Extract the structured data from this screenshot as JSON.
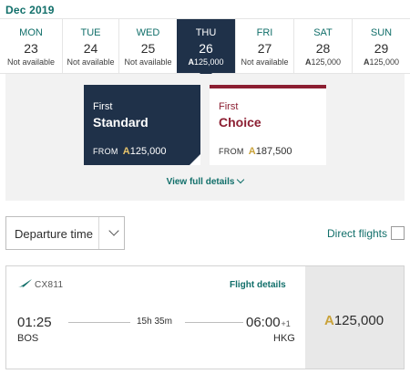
{
  "calendar": {
    "month": "Dec 2019",
    "days": [
      {
        "dow": "MON",
        "date": "23",
        "price": "Not available"
      },
      {
        "dow": "TUE",
        "date": "24",
        "price": "Not available"
      },
      {
        "dow": "WED",
        "date": "25",
        "price": "Not available"
      },
      {
        "dow": "THU",
        "date": "26",
        "price": "125,000",
        "currency": "A",
        "selected": true
      },
      {
        "dow": "FRI",
        "date": "27",
        "price": "Not available"
      },
      {
        "dow": "SAT",
        "date": "28",
        "price": "125,000",
        "currency": "A"
      },
      {
        "dow": "SUN",
        "date": "29",
        "price": "125,000",
        "currency": "A"
      }
    ]
  },
  "fares": {
    "standard": {
      "class": "First",
      "brand": "Standard",
      "from_label": "FROM",
      "currency": "A",
      "price": "125,000"
    },
    "choice": {
      "class": "First",
      "brand": "Choice",
      "from_label": "FROM",
      "currency": "A",
      "price": "187,500"
    },
    "view_full_details": "View full details"
  },
  "sort": {
    "value": "Departure time"
  },
  "filters": {
    "direct_flights_label": "Direct flights",
    "direct_flights_checked": false
  },
  "flight": {
    "number": "CX811",
    "details_link": "Flight details",
    "departure_time": "01:25",
    "departure_airport": "BOS",
    "duration": "15h 35m",
    "arrival_time": "06:00",
    "arrival_day_offset": "+1",
    "arrival_airport": "HKG",
    "currency": "A",
    "price": "125,000"
  },
  "colors": {
    "accent_teal": "#116f6a",
    "navy": "#1f3149",
    "burgundy": "#8c1f32",
    "gold": "#c9a23a"
  },
  "icons": {
    "airline": "cathay-pacific-brushwing-icon",
    "dropdown": "chevron-down-icon"
  }
}
